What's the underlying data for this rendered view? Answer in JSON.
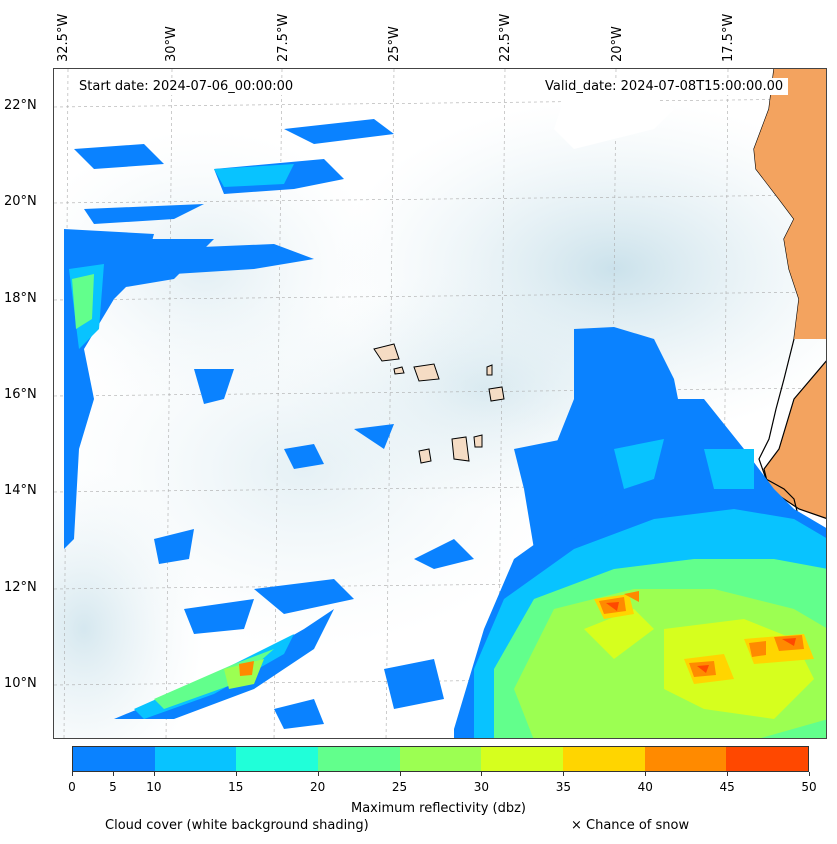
{
  "header": {
    "start_date": "Start date: 2024-07-06_00:00:00",
    "valid_date": "Valid_date: 2024-07-08T15:00:00.00"
  },
  "axes": {
    "lon_labels": [
      "32.5°W",
      "30°W",
      "27.5°W",
      "25°W",
      "22.5°W",
      "20°W",
      "17.5°W"
    ],
    "lat_labels": [
      "22°N",
      "20°N",
      "18°N",
      "16°N",
      "14°N",
      "12°N",
      "10°N"
    ]
  },
  "colorbar": {
    "label": "Maximum reflectivity (dbz)",
    "ticks": [
      "0",
      "5",
      "10",
      "15",
      "20",
      "25",
      "30",
      "35",
      "40",
      "45",
      "50"
    ],
    "colors": [
      "#0a82ff",
      "#08c3ff",
      "#20ffd9",
      "#62ff8c",
      "#9cff52",
      "#d6ff1e",
      "#ffd500",
      "#ff8a00",
      "#ff4800"
    ]
  },
  "footer": {
    "cloud_note": "Cloud cover (white background shading)",
    "snow_note": "× Chance of snow"
  },
  "colors": {
    "land": "#f3a35f",
    "island": "#f5dcc4",
    "cloud_shade": "#cfe4ec"
  }
}
